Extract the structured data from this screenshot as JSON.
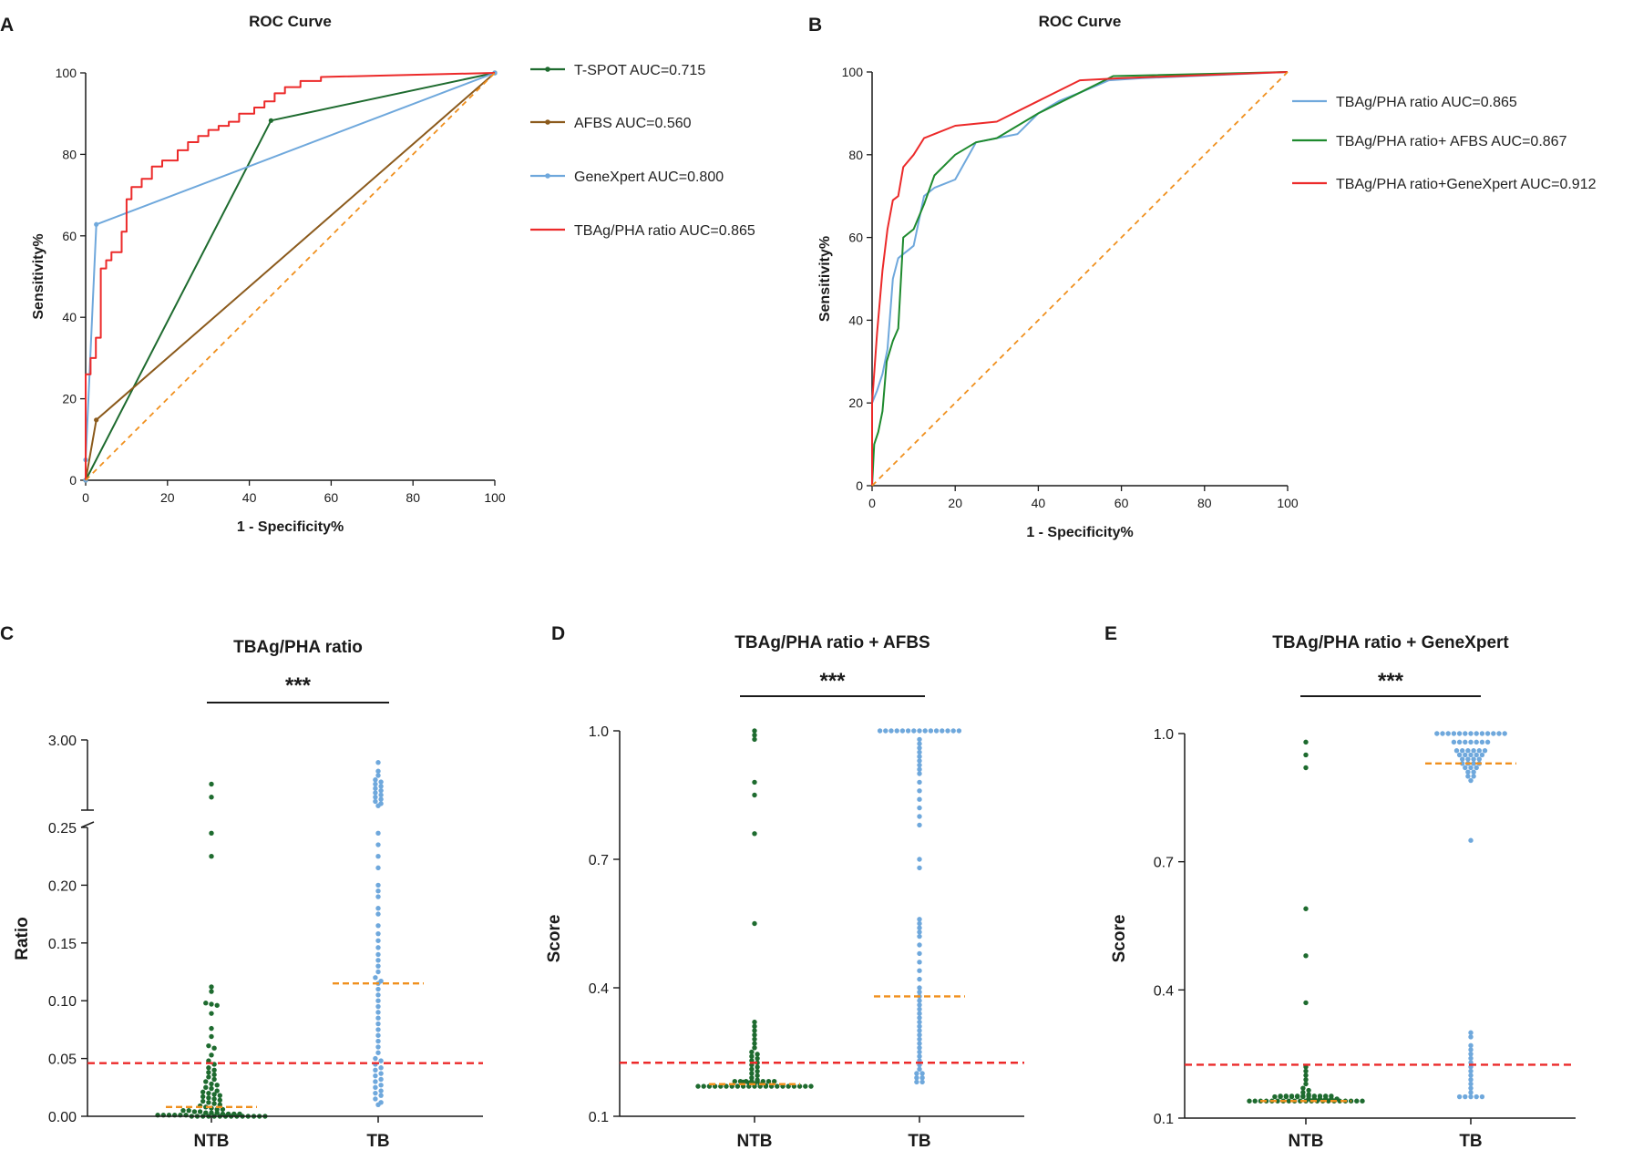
{
  "colors": {
    "green": "#1e6b2f",
    "brown": "#8b5a1c",
    "blue": "#6fa8dc",
    "red": "#ec2a2a",
    "orange": "#f0901e",
    "black": "#1a1a1a"
  },
  "chart_data": [
    {
      "id": "A",
      "panel_label": "A",
      "type": "line",
      "title": "ROC Curve",
      "xlabel": "1 - Specificity%",
      "ylabel": "Sensitivity%",
      "xlim": [
        0,
        100
      ],
      "ylim": [
        0,
        100
      ],
      "xticks": [
        0,
        20,
        40,
        60,
        80,
        100
      ],
      "yticks": [
        0,
        20,
        40,
        60,
        80,
        100
      ],
      "legend": "right",
      "series": [
        {
          "name": "T-SPOT AUC=0.715",
          "color": "#1e6b2f",
          "marker": true,
          "x": [
            0,
            45.3,
            100
          ],
          "y": [
            0,
            88.3,
            100
          ]
        },
        {
          "name": "AFBS AUC=0.560",
          "color": "#8b5a1c",
          "marker": true,
          "x": [
            0,
            2.6,
            100
          ],
          "y": [
            0,
            14.8,
            100
          ]
        },
        {
          "name": "GeneXpert AUC=0.800",
          "color": "#6fa8dc",
          "marker": true,
          "x": [
            0,
            0,
            2.6,
            100
          ],
          "y": [
            0,
            5,
            62.8,
            100
          ]
        },
        {
          "name": "TBAg/PHA ratio AUC=0.865",
          "color": "#ec2a2a",
          "marker": false,
          "x": [
            0,
            0,
            1.2,
            1.2,
            2.5,
            2.5,
            3.7,
            3.7,
            5,
            5,
            6.3,
            6.3,
            8.8,
            8.8,
            10,
            10,
            11.2,
            11.2,
            13.7,
            13.7,
            16.2,
            16.2,
            18.7,
            18.7,
            22.5,
            22.5,
            25,
            25,
            27.5,
            27.5,
            30,
            30,
            32.5,
            32.5,
            35,
            35,
            37.5,
            37.5,
            41.2,
            41.2,
            43.7,
            43.7,
            46.2,
            46.2,
            48.7,
            48.7,
            52.5,
            52.5,
            57.5,
            57.5,
            100
          ],
          "y": [
            0,
            26,
            26,
            30,
            30,
            35,
            35,
            52,
            52,
            54,
            54,
            56,
            56,
            61,
            61,
            69,
            69,
            72,
            72,
            74,
            74,
            77,
            77,
            78.5,
            78.5,
            81,
            81,
            83,
            83,
            84.5,
            84.5,
            86,
            86,
            87,
            87,
            88,
            88,
            90,
            90,
            91.5,
            91.5,
            93,
            93,
            95,
            95,
            96.5,
            96.5,
            98,
            98,
            99,
            100
          ]
        },
        {
          "name": "reference",
          "color": "#f0901e",
          "dashed": true,
          "legend_hidden": true,
          "x": [
            0,
            100
          ],
          "y": [
            0,
            100
          ]
        }
      ]
    },
    {
      "id": "B",
      "panel_label": "B",
      "type": "line",
      "title": "ROC Curve",
      "xlabel": "1 - Specificity%",
      "ylabel": "Sensitivity%",
      "xlim": [
        0,
        100
      ],
      "ylim": [
        0,
        100
      ],
      "xticks": [
        0,
        20,
        40,
        60,
        80,
        100
      ],
      "yticks": [
        0,
        20,
        40,
        60,
        80,
        100
      ],
      "legend": "right",
      "series": [
        {
          "name": "TBAg/PHA ratio AUC=0.865",
          "color": "#6fa8dc",
          "x": [
            0,
            0,
            1.2,
            2.5,
            3.7,
            5,
            6.3,
            7.5,
            8.8,
            10,
            12.5,
            15,
            17.5,
            20,
            25,
            30,
            35,
            40,
            45,
            50,
            57,
            65,
            100
          ],
          "y": [
            0,
            20,
            23,
            27,
            33,
            50,
            55,
            56,
            57,
            58,
            70,
            72,
            73,
            74,
            83,
            84,
            85,
            90,
            93,
            95,
            98,
            98.5,
            100
          ]
        },
        {
          "name": "TBAg/PHA ratio+ AFBS AUC=0.867",
          "color": "#1e8a2e",
          "x": [
            0,
            0.5,
            1.5,
            2.5,
            3.5,
            5,
            6.3,
            7.5,
            10,
            12.5,
            15,
            20,
            25,
            30,
            40,
            50,
            58,
            100
          ],
          "y": [
            0,
            10,
            13,
            18,
            30,
            35,
            38,
            60,
            62,
            68,
            75,
            80,
            83,
            84,
            90,
            95,
            99,
            100
          ]
        },
        {
          "name": "TBAg/PHA ratio+GeneXpert AUC=0.912",
          "color": "#ec2a2a",
          "x": [
            0,
            0,
            1.2,
            2.5,
            3.7,
            5,
            6.3,
            7.5,
            10,
            12.5,
            15,
            20,
            25,
            30,
            40,
            50,
            60,
            100
          ],
          "y": [
            0,
            20,
            37,
            52,
            62,
            69,
            70,
            77,
            80,
            84,
            85,
            87,
            87.5,
            88,
            93,
            98,
            98.5,
            100
          ]
        },
        {
          "name": "reference",
          "color": "#f0901e",
          "dashed": true,
          "legend_hidden": true,
          "x": [
            0,
            100
          ],
          "y": [
            0,
            100
          ]
        }
      ]
    },
    {
      "id": "C",
      "panel_label": "C",
      "type": "scatter",
      "title": "TBAg/PHA ratio",
      "xlabel": "",
      "ylabel": "Ratio",
      "categories": [
        "NTB",
        "TB"
      ],
      "axis_break": true,
      "ylim_lower": [
        0,
        0.25
      ],
      "ylim_upper_label": "3.00",
      "yticks": [
        "0.00",
        "0.05",
        "0.10",
        "0.15",
        "0.20",
        "0.25",
        "3.00"
      ],
      "significance": "***",
      "cutoff": 0.046,
      "medians": {
        "NTB": 0.008,
        "TB": 0.115
      },
      "groups": [
        {
          "name": "NTB",
          "color": "#1e6b2f",
          "upper_values": [
            2.2,
            1.9
          ],
          "values": [
            0.245,
            0.225,
            0.112,
            0.108,
            0.098,
            0.097,
            0.096,
            0.089,
            0.076,
            0.069,
            0.061,
            0.059,
            0.053,
            0.048,
            0.045,
            0.042,
            0.04,
            0.038,
            0.036,
            0.034,
            0.032,
            0.03,
            0.028,
            0.027,
            0.025,
            0.024,
            0.022,
            0.021,
            0.02,
            0.019,
            0.018,
            0.017,
            0.016,
            0.015,
            0.014,
            0.013,
            0.012,
            0.011,
            0.01,
            0.009,
            0.008,
            0.007,
            0.006,
            0.006,
            0.005,
            0.005,
            0.004,
            0.004,
            0.003,
            0.003,
            0.003,
            0.002,
            0.002,
            0.002,
            0.002,
            0.001,
            0.001,
            0.001,
            0.001,
            0.001,
            0.001,
            0.0,
            0.0,
            0.0,
            0.0,
            0.0,
            0.0,
            0.0,
            0.0,
            0.0,
            0.0,
            0.0,
            0.0,
            0.0,
            0.0
          ]
        },
        {
          "name": "TB",
          "color": "#6fa8dc",
          "upper_values": [
            2.7,
            2.5,
            2.4,
            2.3,
            2.25,
            2.2,
            2.15,
            2.1,
            2.05,
            2.0,
            1.95,
            1.9,
            1.85,
            1.8,
            1.75,
            1.7
          ],
          "values": [
            0.245,
            0.235,
            0.225,
            0.215,
            0.2,
            0.195,
            0.19,
            0.18,
            0.175,
            0.165,
            0.158,
            0.152,
            0.146,
            0.14,
            0.135,
            0.13,
            0.125,
            0.12,
            0.117,
            0.115,
            0.11,
            0.105,
            0.1,
            0.095,
            0.09,
            0.085,
            0.08,
            0.075,
            0.07,
            0.065,
            0.06,
            0.055,
            0.05,
            0.048,
            0.045,
            0.042,
            0.04,
            0.037,
            0.035,
            0.032,
            0.03,
            0.027,
            0.025,
            0.022,
            0.02,
            0.018,
            0.015,
            0.012,
            0.01
          ]
        }
      ]
    },
    {
      "id": "D",
      "panel_label": "D",
      "type": "scatter",
      "title": "TBAg/PHA ratio + AFBS",
      "xlabel": "",
      "ylabel": "Score",
      "categories": [
        "NTB",
        "TB"
      ],
      "ylim": [
        0.1,
        1.0
      ],
      "yticks": [
        "0.1",
        "0.4",
        "0.7",
        "1.0"
      ],
      "significance": "***",
      "cutoff": 0.225,
      "medians": {
        "NTB": 0.175,
        "TB": 0.38
      },
      "groups": [
        {
          "name": "NTB",
          "color": "#1e6b2f",
          "values": [
            1.0,
            0.99,
            0.98,
            0.88,
            0.85,
            0.76,
            0.55,
            0.32,
            0.31,
            0.3,
            0.29,
            0.28,
            0.27,
            0.26,
            0.25,
            0.245,
            0.24,
            0.235,
            0.23,
            0.225,
            0.22,
            0.215,
            0.21,
            0.205,
            0.2,
            0.195,
            0.19,
            0.185,
            0.18,
            0.178,
            0.176,
            0.174,
            0.172,
            0.17,
            0.17,
            0.17,
            0.17,
            0.17,
            0.17,
            0.17,
            0.17,
            0.17,
            0.17,
            0.17,
            0.17,
            0.17,
            0.17,
            0.17,
            0.17,
            0.17,
            0.17,
            0.17,
            0.17,
            0.17,
            0.17,
            0.17,
            0.17,
            0.17,
            0.17,
            0.17,
            0.17,
            0.17
          ]
        },
        {
          "name": "TB",
          "color": "#6fa8dc",
          "values": [
            1.0,
            1.0,
            1.0,
            1.0,
            1.0,
            1.0,
            1.0,
            1.0,
            1.0,
            1.0,
            1.0,
            1.0,
            1.0,
            1.0,
            1.0,
            0.98,
            0.97,
            0.96,
            0.95,
            0.94,
            0.93,
            0.92,
            0.91,
            0.9,
            0.88,
            0.86,
            0.84,
            0.82,
            0.8,
            0.78,
            0.7,
            0.68,
            0.56,
            0.55,
            0.54,
            0.53,
            0.52,
            0.5,
            0.48,
            0.46,
            0.44,
            0.42,
            0.4,
            0.39,
            0.38,
            0.37,
            0.36,
            0.35,
            0.34,
            0.33,
            0.32,
            0.31,
            0.3,
            0.29,
            0.28,
            0.27,
            0.26,
            0.25,
            0.24,
            0.23,
            0.22,
            0.21,
            0.2,
            0.2,
            0.19,
            0.19,
            0.18,
            0.18
          ]
        }
      ]
    },
    {
      "id": "E",
      "panel_label": "E",
      "type": "scatter",
      "title": "TBAg/PHA ratio + GeneXpert",
      "xlabel": "",
      "ylabel": "Score",
      "categories": [
        "NTB",
        "TB"
      ],
      "ylim": [
        0.1,
        1.0
      ],
      "yticks": [
        "0.1",
        "0.4",
        "0.7",
        "1.0"
      ],
      "significance": "***",
      "cutoff": 0.225,
      "medians": {
        "NTB": 0.14,
        "TB": 0.93
      },
      "groups": [
        {
          "name": "NTB",
          "color": "#1e6b2f",
          "values": [
            0.98,
            0.95,
            0.92,
            0.59,
            0.48,
            0.37,
            0.22,
            0.21,
            0.2,
            0.19,
            0.18,
            0.17,
            0.165,
            0.16,
            0.155,
            0.15,
            0.15,
            0.15,
            0.15,
            0.15,
            0.15,
            0.145,
            0.145,
            0.145,
            0.145,
            0.145,
            0.145,
            0.14,
            0.14,
            0.14,
            0.14,
            0.14,
            0.14,
            0.14,
            0.14,
            0.14,
            0.14,
            0.14,
            0.14,
            0.14,
            0.14,
            0.14,
            0.14,
            0.14,
            0.14,
            0.14,
            0.14,
            0.14,
            0.14,
            0.14,
            0.14,
            0.14,
            0.14,
            0.14,
            0.14,
            0.14,
            0.14,
            0.14
          ]
        },
        {
          "name": "TB",
          "color": "#6fa8dc",
          "values": [
            1.0,
            1.0,
            1.0,
            1.0,
            1.0,
            1.0,
            1.0,
            1.0,
            1.0,
            1.0,
            1.0,
            1.0,
            1.0,
            0.98,
            0.98,
            0.98,
            0.98,
            0.98,
            0.98,
            0.98,
            0.96,
            0.96,
            0.96,
            0.96,
            0.96,
            0.96,
            0.95,
            0.95,
            0.95,
            0.95,
            0.95,
            0.94,
            0.94,
            0.94,
            0.94,
            0.93,
            0.93,
            0.93,
            0.93,
            0.92,
            0.92,
            0.92,
            0.91,
            0.91,
            0.9,
            0.9,
            0.89,
            0.75,
            0.3,
            0.29,
            0.27,
            0.26,
            0.25,
            0.24,
            0.23,
            0.22,
            0.21,
            0.2,
            0.19,
            0.18,
            0.17,
            0.16,
            0.15,
            0.15,
            0.15,
            0.15,
            0.15
          ]
        }
      ]
    }
  ]
}
